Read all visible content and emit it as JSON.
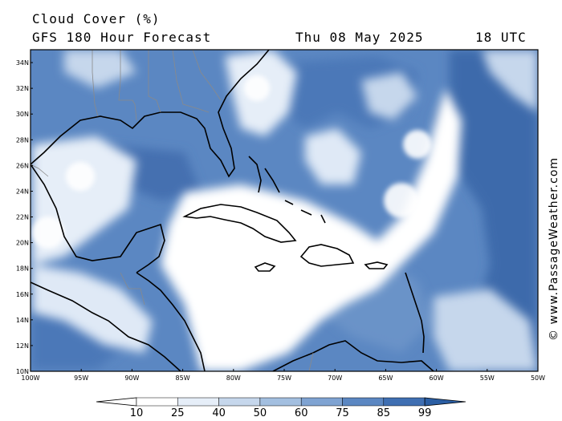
{
  "header": {
    "title": "Cloud Cover (%)",
    "subtitle": "GFS 180 Hour Forecast",
    "date": "Thu 08 May 2025",
    "time": "18 UTC"
  },
  "credit": "© www.PassageWeather.com",
  "map": {
    "lon_range": [
      -100,
      -50
    ],
    "lat_range": [
      10,
      35
    ],
    "lat_labels": [
      "10N",
      "12N",
      "14N",
      "16N",
      "18N",
      "20N",
      "22N",
      "24N",
      "26N",
      "28N",
      "30N",
      "32N",
      "34N"
    ],
    "lon_labels": [
      "100W",
      "95W",
      "90W",
      "85W",
      "80W",
      "75W",
      "70W",
      "65W",
      "60W",
      "55W",
      "50W"
    ]
  },
  "legend": {
    "labels": [
      "10",
      "25",
      "40",
      "50",
      "60",
      "75",
      "85",
      "99"
    ],
    "colors": [
      "#ffffff",
      "#e6eef8",
      "#c6d7ec",
      "#a3bfe0",
      "#7fa3d2",
      "#5b87c2",
      "#3f6fb2",
      "#2b5ea3"
    ]
  }
}
